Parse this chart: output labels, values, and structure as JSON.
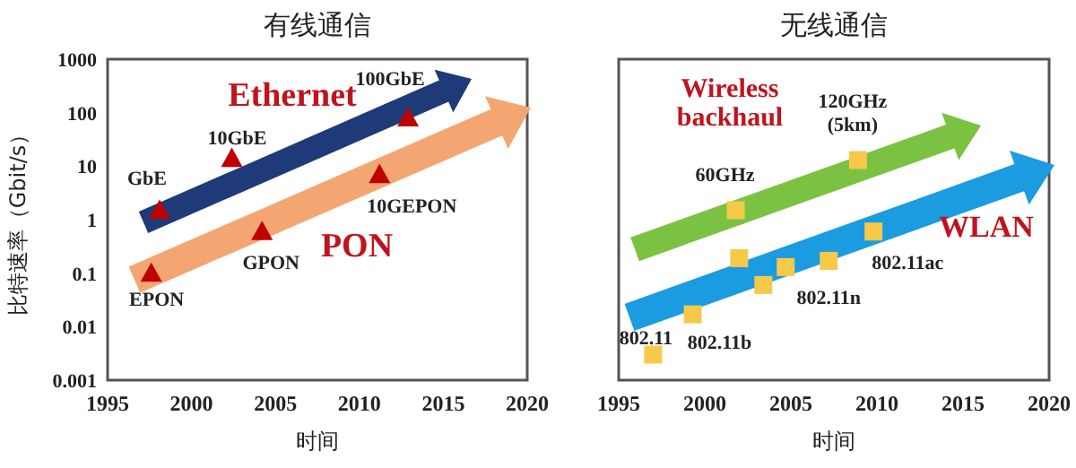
{
  "chart_data": [
    {
      "type": "scatter",
      "title": "有线通信",
      "xlabel": "时间",
      "ylabel": "比特速率（Gbit/s）",
      "log": "y",
      "marker": "triangle",
      "grid": false,
      "xlim": [
        1995,
        2020
      ],
      "xticks": [
        1995,
        2000,
        2005,
        2010,
        2015,
        2020
      ],
      "ylim": [
        0.001,
        1000
      ],
      "yticks": [
        0.001,
        0.01,
        0.1,
        1,
        10,
        100,
        1000
      ],
      "series": [
        {
          "name": "Ethernet",
          "color": "#c00000",
          "x": [
            1998.1,
            2002.4,
            2012.9
          ],
          "values": [
            1.5,
            14,
            80
          ]
        },
        {
          "name": "PON",
          "color": "#c00000",
          "x": [
            1997.6,
            2004.2,
            2011.2
          ],
          "values": [
            0.1,
            0.6,
            7
          ]
        }
      ],
      "annotations": [
        {
          "text": "EPON",
          "x": 1997.6,
          "y": 0.1
        },
        {
          "text": "GbE",
          "x": 1998.1,
          "y": 1.5
        },
        {
          "text": "10GbE",
          "x": 2002.4,
          "y": 14
        },
        {
          "text": "GPON",
          "x": 2004.2,
          "y": 0.6
        },
        {
          "text": "10GEPON",
          "x": 2011.2,
          "y": 7
        },
        {
          "text": "100GbE",
          "x": 2012.9,
          "y": 80
        }
      ]
    },
    {
      "type": "scatter",
      "title": "无线通信",
      "xlabel": "时间",
      "log": "y",
      "marker": "square",
      "grid": false,
      "tick_labels": "x",
      "xlim": [
        1995,
        2020
      ],
      "xticks": [
        1995,
        2000,
        2005,
        2010,
        2015,
        2020
      ],
      "ylim": [
        0.001,
        1000
      ],
      "yticks": [
        0.001,
        0.01,
        0.1,
        1,
        10,
        100,
        1000
      ],
      "series": [
        {
          "name": "Wireless backhaul",
          "color": "#f7c948",
          "x": [
            2001.8,
            2008.9
          ],
          "values": [
            1.5,
            13
          ]
        },
        {
          "name": "WLAN",
          "color": "#f7c948",
          "x": [
            1997.0,
            1999.3,
            2002.0,
            2003.4,
            2004.7,
            2007.2,
            2009.8
          ],
          "values": [
            0.003,
            0.017,
            0.19,
            0.06,
            0.13,
            0.17,
            0.6
          ]
        }
      ],
      "annotations": [
        {
          "text": "802.11",
          "x": 1997.0,
          "y": 0.003
        },
        {
          "text": "802.11b",
          "x": 1999.3,
          "y": 0.017
        },
        {
          "text": "60GHz",
          "x": 2001.8,
          "y": 1.5
        },
        {
          "text": "120GHz (5km)",
          "x": 2008.9,
          "y": 13
        },
        {
          "text": "802.11n",
          "x": 2007.2,
          "y": 0.17
        },
        {
          "text": "802.11ac",
          "x": 2009.8,
          "y": 0.6
        }
      ]
    }
  ]
}
